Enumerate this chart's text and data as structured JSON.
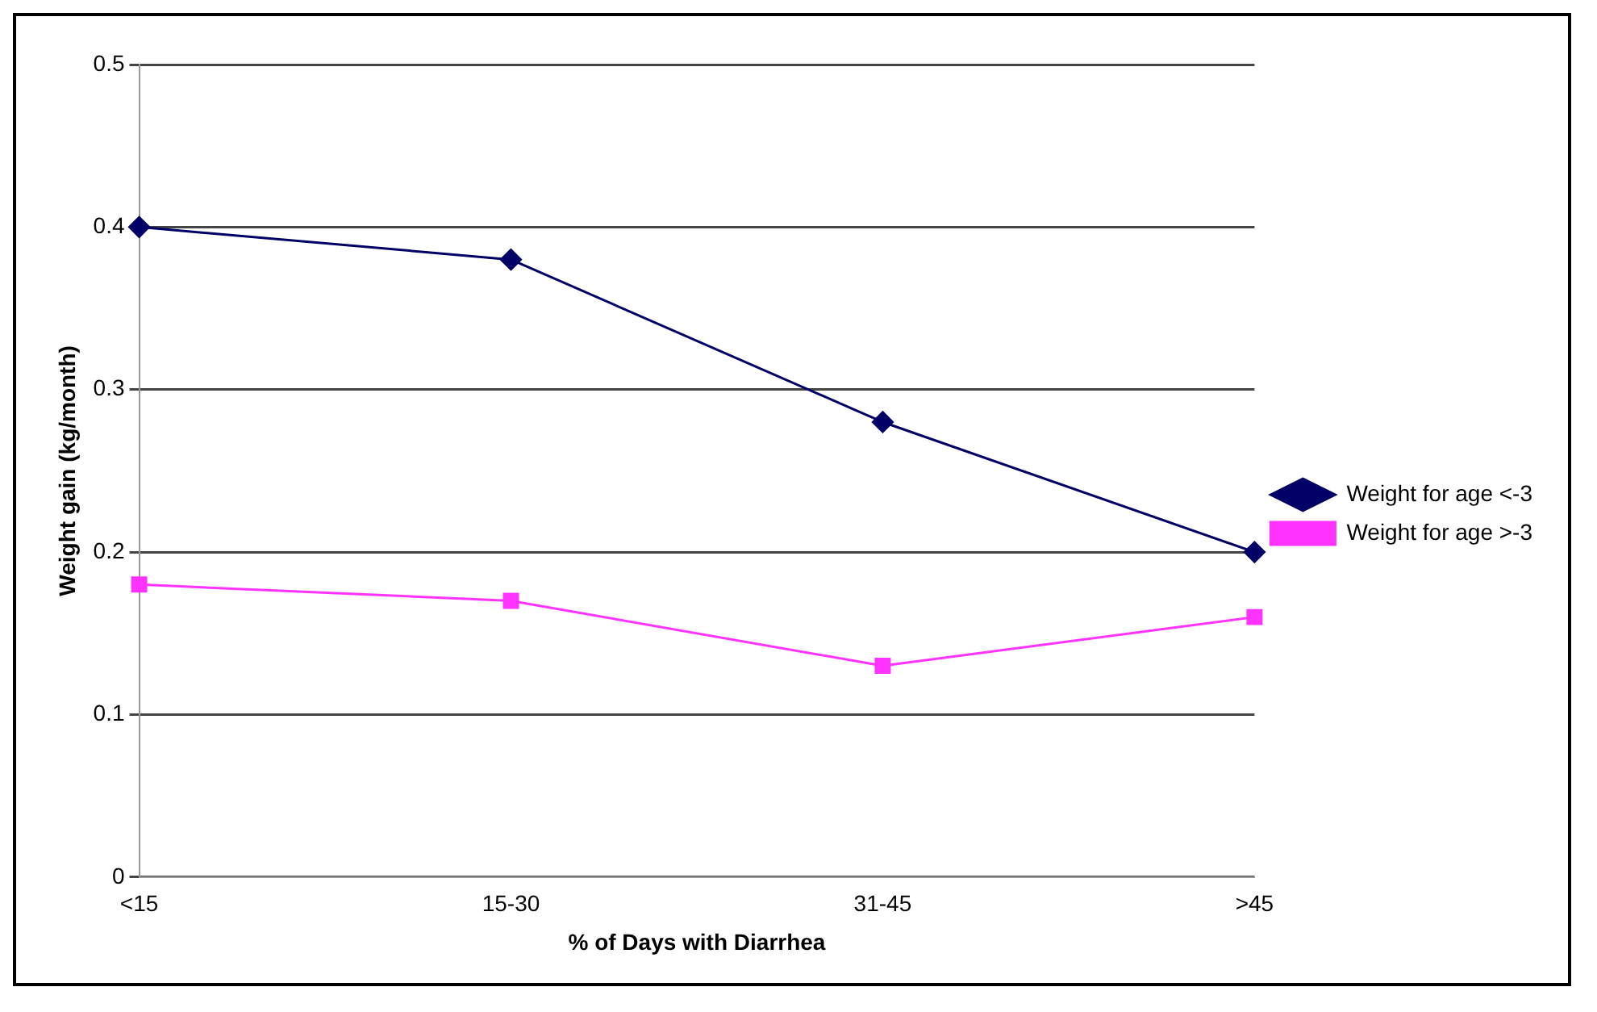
{
  "chart_data": {
    "type": "line",
    "xlabel": "% of Days with Diarrhea",
    "ylabel": "Weight gain (kg/month)",
    "categories": [
      "<15",
      "15-30",
      "31-45",
      ">45"
    ],
    "series": [
      {
        "name": "Weight for age <-3",
        "color": "#000066",
        "marker": "diamond",
        "values": [
          0.4,
          0.38,
          0.28,
          0.2
        ]
      },
      {
        "name": "Weight for age >-3",
        "color": "#ff33ff",
        "marker": "square",
        "values": [
          0.18,
          0.17,
          0.13,
          0.16
        ]
      }
    ],
    "ylim": [
      0,
      0.5
    ],
    "yticks": [
      0,
      0.1,
      0.2,
      0.3,
      0.4,
      0.5
    ],
    "grid": "y",
    "legend": "right"
  }
}
